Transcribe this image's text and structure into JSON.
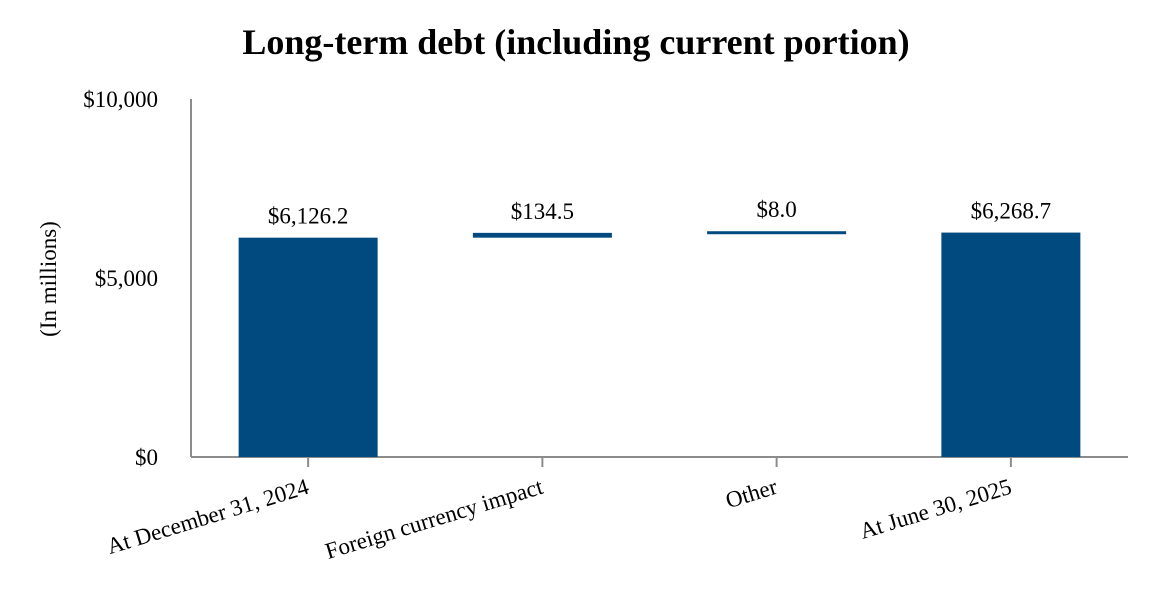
{
  "chart_data": {
    "type": "waterfall",
    "title": "Long-term debt (including current portion)",
    "xlabel": "",
    "ylabel": "(In millions)",
    "ylim": [
      0,
      10000
    ],
    "yticks": [
      {
        "value": 0,
        "label": "$0"
      },
      {
        "value": 5000,
        "label": "$5,000"
      },
      {
        "value": 10000,
        "label": "$10,000"
      }
    ],
    "grid": false,
    "legend": "none",
    "bars": [
      {
        "category": "At December 31, 2024",
        "kind": "total",
        "start": 0,
        "end": 6126.2,
        "value": 6126.2,
        "label": "$6,126.2"
      },
      {
        "category": "Foreign currency impact",
        "kind": "change",
        "start": 6126.2,
        "end": 6260.7,
        "value": 134.5,
        "label": "$134.5"
      },
      {
        "category": "Other",
        "kind": "change",
        "start": 6260.7,
        "end": 6268.7,
        "value": 8.0,
        "label": "$8.0"
      },
      {
        "category": "At June 30, 2025",
        "kind": "total",
        "start": 0,
        "end": 6268.7,
        "value": 6268.7,
        "label": "$6,268.7"
      }
    ],
    "colors": {
      "bar": "#004a80",
      "axis": "#8c8c8c"
    }
  }
}
